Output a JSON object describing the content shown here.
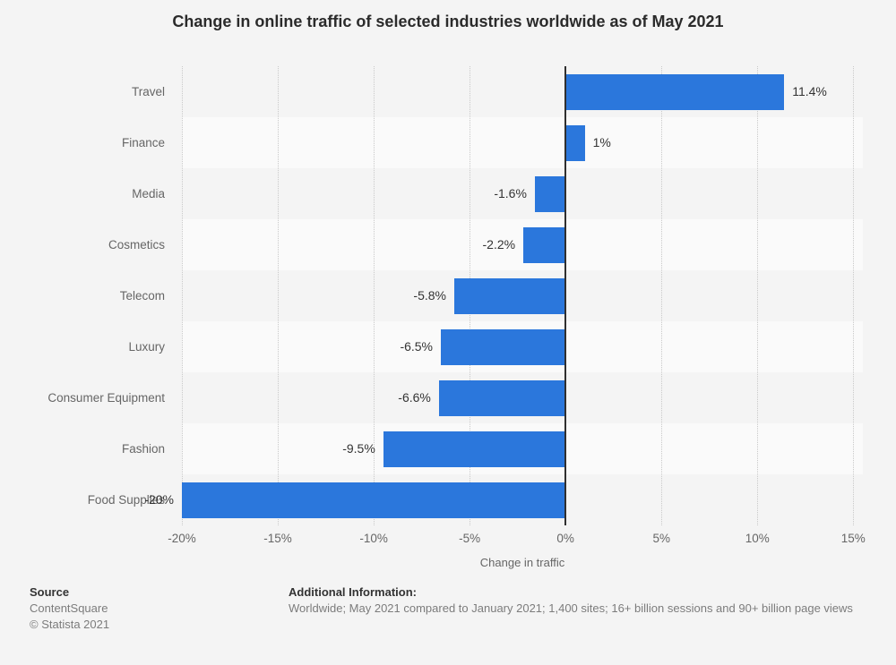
{
  "title": "Change in online traffic of selected industries worldwide as of May 2021",
  "chart_data": {
    "type": "bar",
    "orientation": "horizontal",
    "title": "Change in online traffic of selected industries worldwide as of May 2021",
    "categories": [
      "Travel",
      "Finance",
      "Media",
      "Cosmetics",
      "Telecom",
      "Luxury",
      "Consumer Equipment",
      "Fashion",
      "Food Supplies"
    ],
    "values": [
      11.4,
      1,
      -1.6,
      -2.2,
      -5.8,
      -6.5,
      -6.6,
      -9.5,
      -20
    ],
    "value_labels": [
      "11.4%",
      "1%",
      "-1.6%",
      "-2.2%",
      "-5.8%",
      "-6.5%",
      "-6.6%",
      "-9.5%",
      "-20%"
    ],
    "xlabel": "Change in traffic",
    "ylabel": "",
    "xlim": [
      -20,
      15.5
    ],
    "xticks": [
      -20,
      -15,
      -10,
      -5,
      0,
      5,
      10,
      15
    ],
    "xtick_labels": [
      "-20%",
      "-15%",
      "-10%",
      "-5%",
      "0%",
      "5%",
      "10%",
      "15%"
    ],
    "grid": "vertical-dotted",
    "legend": "none",
    "bar_color": "#2b77dc",
    "stripe_color": "#fafafa",
    "background_color": "#f4f4f4",
    "zero_line_color": "#2f2f2f"
  },
  "footer": {
    "source_label": "Source",
    "source_lines": [
      "ContentSquare",
      "© Statista 2021"
    ],
    "additional_label": "Additional Information:",
    "additional_text": "Worldwide; May 2021 compared to January 2021; 1,400 sites; 16+ billion sessions and 90+ billion page views"
  }
}
